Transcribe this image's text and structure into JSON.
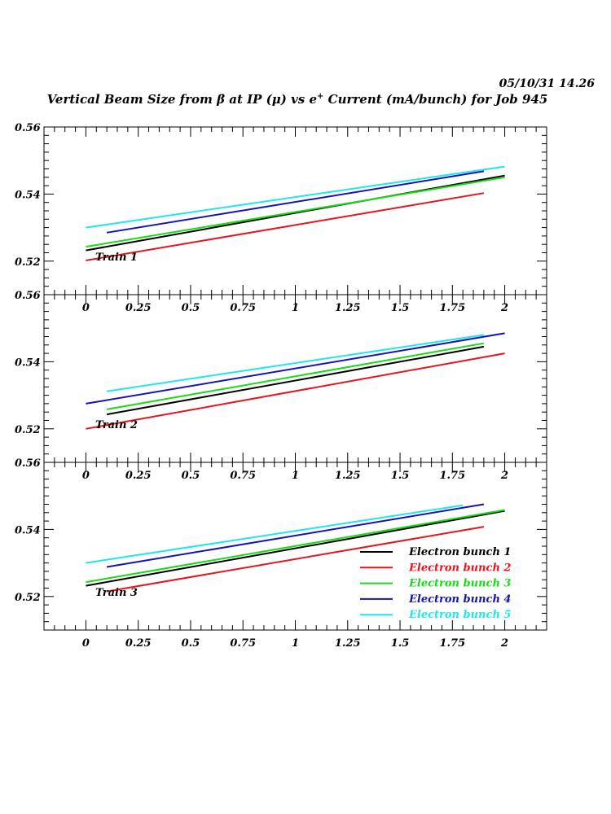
{
  "header": {
    "datestamp": "05/10/31   14.26",
    "title_pre": "Vertical Beam Size from ",
    "title_beta": "β",
    "title_mid": " at IP (",
    "title_mu": "μ",
    "title_mid2": ") vs e",
    "title_sup": "+",
    "title_post": " Current (mA/bunch) for Job 945"
  },
  "chart_data": {
    "type": "line",
    "shared_x_axis": true,
    "xlim": [
      -0.2,
      2.2
    ],
    "ylim": [
      0.51,
      0.56
    ],
    "x_ticks": [
      0,
      0.25,
      0.5,
      0.75,
      1,
      1.25,
      1.5,
      1.75,
      2
    ],
    "x_tick_labels": [
      "0",
      "0.25",
      "0.5",
      "0.75",
      "1",
      "1.25",
      "1.5",
      "1.75",
      "2"
    ],
    "y_ticks": [
      0.52,
      0.54,
      0.56
    ],
    "y_tick_labels": [
      "0.52",
      "0.54",
      "0.56"
    ],
    "legend": {
      "position": "bottom-right",
      "panel": 3
    },
    "series_styles": [
      {
        "name": "Electron bunch 1",
        "color": "#000000"
      },
      {
        "name": "Electron bunch 2",
        "color": "#e8141c"
      },
      {
        "name": "Electron bunch 3",
        "color": "#16dc16"
      },
      {
        "name": "Electron bunch 4",
        "color": "#1414b4"
      },
      {
        "name": "Electron bunch 5",
        "color": "#1ee6ee"
      }
    ],
    "panels": [
      {
        "label": "Train 1",
        "series": [
          {
            "name": "Electron bunch 1",
            "x": [
              0,
              2
            ],
            "y": [
              0.5232,
              0.5455
            ]
          },
          {
            "name": "Electron bunch 2",
            "x": [
              0,
              1.9
            ],
            "y": [
              0.5202,
              0.5403
            ]
          },
          {
            "name": "Electron bunch 3",
            "x": [
              0,
              2
            ],
            "y": [
              0.5243,
              0.545
            ]
          },
          {
            "name": "Electron bunch 4",
            "x": [
              0.1,
              1.9
            ],
            "y": [
              0.5285,
              0.5468
            ]
          },
          {
            "name": "Electron bunch 5",
            "x": [
              0,
              2
            ],
            "y": [
              0.53,
              0.5482
            ]
          }
        ]
      },
      {
        "label": "Train 2",
        "series": [
          {
            "name": "Electron bunch 1",
            "x": [
              0.1,
              1.9
            ],
            "y": [
              0.5243,
              0.5445
            ]
          },
          {
            "name": "Electron bunch 2",
            "x": [
              0,
              2
            ],
            "y": [
              0.52,
              0.5425
            ]
          },
          {
            "name": "Electron bunch 3",
            "x": [
              0.1,
              1.9
            ],
            "y": [
              0.5258,
              0.5455
            ]
          },
          {
            "name": "Electron bunch 4",
            "x": [
              0,
              2
            ],
            "y": [
              0.5275,
              0.5485
            ]
          },
          {
            "name": "Electron bunch 5",
            "x": [
              0.1,
              1.9
            ],
            "y": [
              0.5312,
              0.548
            ]
          }
        ]
      },
      {
        "label": "Train 3",
        "series": [
          {
            "name": "Electron bunch 1",
            "x": [
              0,
              2
            ],
            "y": [
              0.5232,
              0.5455
            ]
          },
          {
            "name": "Electron bunch 2",
            "x": [
              0.1,
              1.9
            ],
            "y": [
              0.5215,
              0.5408
            ]
          },
          {
            "name": "Electron bunch 3",
            "x": [
              0,
              2
            ],
            "y": [
              0.5243,
              0.5458
            ]
          },
          {
            "name": "Electron bunch 4",
            "x": [
              0.1,
              1.9
            ],
            "y": [
              0.5288,
              0.5475
            ]
          },
          {
            "name": "Electron bunch 5",
            "x": [
              0,
              1.8
            ],
            "y": [
              0.53,
              0.5472
            ]
          }
        ]
      }
    ]
  }
}
